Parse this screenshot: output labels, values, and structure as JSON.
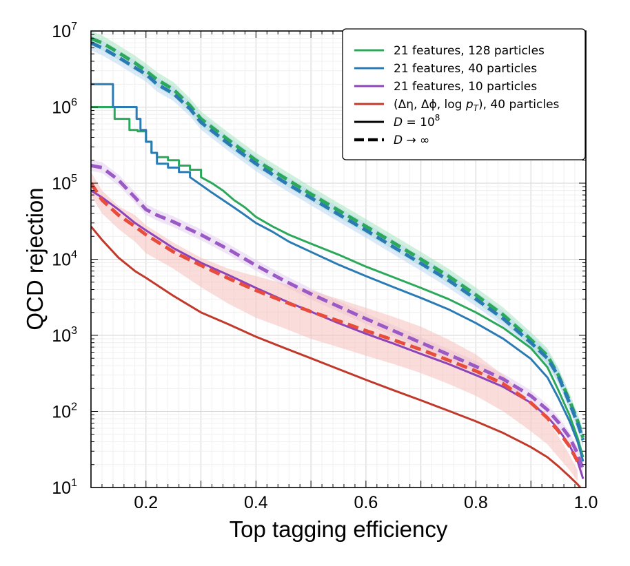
{
  "chart_data": {
    "type": "line",
    "title": "",
    "xlabel": "Top tagging efficiency",
    "ylabel": "QCD rejection",
    "xlim": [
      0.1,
      1.0
    ],
    "ylim": [
      10,
      10000000
    ],
    "yscale": "log",
    "grid": true,
    "x_ticks": [
      {
        "value": 0.2,
        "label": "0.2"
      },
      {
        "value": 0.4,
        "label": "0.4"
      },
      {
        "value": 0.6,
        "label": "0.6"
      },
      {
        "value": 0.8,
        "label": "0.8"
      },
      {
        "value": 1.0,
        "label": "1.0"
      }
    ],
    "y_ticks": [
      {
        "value": 10,
        "base": "10",
        "exp": "1"
      },
      {
        "value": 100,
        "base": "10",
        "exp": "2"
      },
      {
        "value": 1000,
        "base": "10",
        "exp": "3"
      },
      {
        "value": 10000,
        "base": "10",
        "exp": "4"
      },
      {
        "value": 100000,
        "base": "10",
        "exp": "5"
      },
      {
        "value": 1000000,
        "base": "10",
        "exp": "6"
      },
      {
        "value": 10000000,
        "base": "10",
        "exp": "7"
      }
    ],
    "legend": {
      "position": "top-right",
      "entries": [
        {
          "id": "green",
          "label": "21 features, 128 particles",
          "color": "#2ca85a",
          "style": "solid"
        },
        {
          "id": "blue",
          "label": "21 features, 40 particles",
          "color": "#2a7bb4",
          "style": "solid"
        },
        {
          "id": "purple",
          "label": "21 features, 10 particles",
          "color": "#8e44b9",
          "style": "solid"
        },
        {
          "id": "red",
          "label": "(Δη, Δϕ, log pT), 40 particles",
          "color": "#c0392b",
          "style": "solid"
        },
        {
          "id": "d-finite",
          "label": "D = 10^8",
          "color": "#000000",
          "style": "solid"
        },
        {
          "id": "d-infinite",
          "label": "D → ∞",
          "color": "#000000",
          "style": "dashed"
        }
      ]
    },
    "series": [
      {
        "name": "21 features, 128 particles (D = 10^8)",
        "color": "#2ca85a",
        "style": "solid",
        "step": true,
        "x": [
          0.1,
          0.143,
          0.143,
          0.17,
          0.17,
          0.185,
          0.185,
          0.2,
          0.2,
          0.21,
          0.21,
          0.22,
          0.22,
          0.24,
          0.24,
          0.26,
          0.26,
          0.28,
          0.28,
          0.3,
          0.3,
          0.32,
          0.34,
          0.36,
          0.38,
          0.4,
          0.43,
          0.46,
          0.5,
          0.55,
          0.6,
          0.65,
          0.7,
          0.75,
          0.8,
          0.85,
          0.9,
          0.93,
          0.95,
          0.97,
          0.985,
          0.995
        ],
        "y": [
          1000000,
          1000000,
          700000,
          700000,
          500000,
          500000,
          480000,
          480000,
          350000,
          350000,
          250000,
          250000,
          220000,
          220000,
          200000,
          200000,
          170000,
          170000,
          150000,
          150000,
          120000,
          100000,
          80000,
          60000,
          48000,
          36000,
          27000,
          21000,
          16000,
          11500,
          8000,
          5800,
          4200,
          3000,
          2000,
          1250,
          680,
          380,
          190,
          90,
          45,
          25
        ]
      },
      {
        "name": "21 features, 40 particles (D = 10^8)",
        "color": "#2a7bb4",
        "style": "solid",
        "step": true,
        "x": [
          0.1,
          0.14,
          0.14,
          0.183,
          0.183,
          0.19,
          0.19,
          0.2,
          0.2,
          0.21,
          0.21,
          0.22,
          0.22,
          0.24,
          0.24,
          0.26,
          0.26,
          0.28,
          0.28,
          0.3,
          0.32,
          0.34,
          0.36,
          0.38,
          0.4,
          0.43,
          0.46,
          0.5,
          0.55,
          0.6,
          0.65,
          0.7,
          0.75,
          0.8,
          0.85,
          0.9,
          0.93,
          0.95,
          0.97,
          0.985,
          0.995
        ],
        "y": [
          2000000,
          2000000,
          1000000,
          1000000,
          700000,
          700000,
          500000,
          500000,
          350000,
          350000,
          250000,
          250000,
          180000,
          180000,
          160000,
          160000,
          140000,
          140000,
          120000,
          95000,
          75000,
          60000,
          48000,
          38000,
          30000,
          23000,
          17000,
          12500,
          8500,
          6000,
          4300,
          3100,
          2200,
          1450,
          900,
          490,
          280,
          150,
          75,
          40,
          22
        ]
      },
      {
        "name": "21 features, 10 particles (D = 10^8)",
        "color": "#8e44b9",
        "style": "solid",
        "x": [
          0.1,
          0.12,
          0.15,
          0.18,
          0.2,
          0.25,
          0.3,
          0.35,
          0.4,
          0.45,
          0.5,
          0.55,
          0.6,
          0.65,
          0.7,
          0.75,
          0.8,
          0.85,
          0.9,
          0.93,
          0.95,
          0.97,
          0.985,
          0.995
        ],
        "y": [
          80000,
          65000,
          45000,
          30000,
          24000,
          14000,
          9000,
          6200,
          4200,
          2900,
          2050,
          1450,
          1050,
          780,
          570,
          420,
          300,
          210,
          130,
          85,
          58,
          36,
          22,
          13
        ]
      },
      {
        "name": "(Δη, Δϕ, log pT), 40 particles (D = 10^8)",
        "color": "#c0392b",
        "style": "solid",
        "x": [
          0.1,
          0.12,
          0.15,
          0.18,
          0.2,
          0.25,
          0.3,
          0.35,
          0.4,
          0.45,
          0.5,
          0.55,
          0.6,
          0.65,
          0.7,
          0.75,
          0.8,
          0.85,
          0.9,
          0.93,
          0.95,
          0.97,
          0.985,
          0.995
        ],
        "y": [
          27000,
          18000,
          10500,
          7000,
          5700,
          3300,
          2000,
          1400,
          960,
          690,
          500,
          360,
          260,
          190,
          140,
          102,
          74,
          52,
          34,
          25,
          19,
          14,
          11,
          9
        ]
      },
      {
        "name": "21 features, 128 particles (D → ∞)",
        "color": "#2ca85a",
        "style": "dashed",
        "band": {
          "color": "#a8e4c0",
          "lower": 0.8,
          "upper": 1.25
        },
        "x": [
          0.1,
          0.12,
          0.15,
          0.18,
          0.2,
          0.22,
          0.25,
          0.28,
          0.3,
          0.35,
          0.4,
          0.45,
          0.5,
          0.55,
          0.6,
          0.65,
          0.7,
          0.75,
          0.8,
          0.85,
          0.9,
          0.93,
          0.95,
          0.97,
          0.985,
          0.995
        ],
        "y": [
          8000000,
          7000000,
          5200000,
          3800000,
          3000000,
          2300000,
          1700000,
          1050000,
          700000,
          370000,
          200000,
          120000,
          72000,
          44000,
          27000,
          16500,
          10000,
          6000,
          3400,
          1850,
          880,
          540,
          300,
          140,
          75,
          45
        ]
      },
      {
        "name": "21 features, 40 particles (D → ∞)",
        "color": "#2a7bb4",
        "style": "dashed",
        "band": {
          "color": "#bcd8f3",
          "lower": 0.8,
          "upper": 1.25
        },
        "x": [
          0.1,
          0.12,
          0.15,
          0.18,
          0.2,
          0.22,
          0.25,
          0.28,
          0.3,
          0.35,
          0.4,
          0.45,
          0.5,
          0.55,
          0.6,
          0.65,
          0.7,
          0.75,
          0.8,
          0.85,
          0.9,
          0.93,
          0.95,
          0.97,
          0.985,
          0.995
        ],
        "y": [
          7000000,
          6000000,
          4500000,
          3300000,
          2700000,
          2000000,
          1500000,
          950000,
          630000,
          330000,
          180000,
          105000,
          64000,
          39000,
          24000,
          14500,
          8800,
          5300,
          3000,
          1650,
          800,
          500,
          290,
          130,
          70,
          42
        ]
      },
      {
        "name": "21 features, 10 particles (D → ∞)",
        "color": "#9b59c6",
        "style": "dashed",
        "band": {
          "color": "#e4d0f0",
          "lower": 0.85,
          "upper": 1.18
        },
        "x": [
          0.1,
          0.12,
          0.15,
          0.18,
          0.2,
          0.22,
          0.25,
          0.3,
          0.35,
          0.4,
          0.45,
          0.5,
          0.55,
          0.6,
          0.65,
          0.7,
          0.75,
          0.8,
          0.85,
          0.9,
          0.93,
          0.95,
          0.97,
          0.985,
          0.995
        ],
        "y": [
          170000,
          160000,
          110000,
          65000,
          45000,
          38000,
          31000,
          21000,
          13500,
          8300,
          5300,
          3500,
          2400,
          1650,
          1150,
          800,
          560,
          390,
          265,
          160,
          105,
          72,
          46,
          28,
          17
        ]
      },
      {
        "name": "(Δη, Δϕ, log pT), 40 particles (D → ∞)",
        "color": "#e74c3c",
        "style": "dashed",
        "band": {
          "color": "#f5c0bc",
          "lower_values": [
            70000,
            40000,
            25000,
            17000,
            12000,
            7500,
            4300,
            2600,
            1700,
            1250,
            900,
            700,
            540,
            420,
            320,
            230,
            160,
            100,
            55,
            37,
            25,
            17,
            12
          ],
          "upper_values": [
            140000,
            80000,
            50000,
            38000,
            28000,
            16500,
            10500,
            7500,
            6000,
            4800,
            3900,
            3000,
            2300,
            1750,
            1300,
            880,
            560,
            300,
            130,
            80,
            47,
            27,
            17
          ]
        },
        "x": [
          0.1,
          0.12,
          0.15,
          0.18,
          0.2,
          0.25,
          0.3,
          0.35,
          0.4,
          0.45,
          0.5,
          0.55,
          0.6,
          0.65,
          0.7,
          0.75,
          0.8,
          0.85,
          0.9,
          0.93,
          0.95,
          0.97,
          0.985
        ],
        "y": [
          100000,
          60000,
          38000,
          27000,
          21000,
          12500,
          8300,
          5600,
          3900,
          2800,
          2050,
          1550,
          1150,
          870,
          650,
          470,
          340,
          230,
          130,
          82,
          55,
          35,
          22
        ]
      }
    ]
  }
}
